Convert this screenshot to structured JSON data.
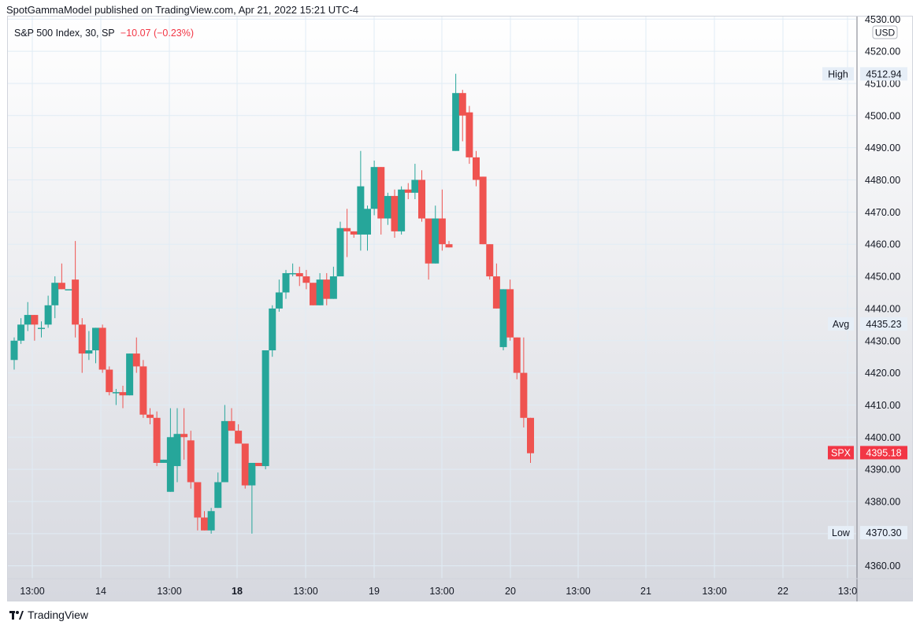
{
  "header": {
    "published": "SpotGammaModel published on TradingView.com, Apr 21, 2022 15:21 UTC-4"
  },
  "legend": {
    "symbol": "S&P 500 Index, 30, SP",
    "change": "−10.07 (−0.23%)"
  },
  "currency": "USD",
  "footer": {
    "brand": "TradingView"
  },
  "colors": {
    "up": "#26a69a",
    "down": "#ef5350",
    "grid": "#e0ecf5"
  },
  "chart_data": {
    "type": "candlestick",
    "title": "S&P 500 Index, 30, SP",
    "ylim": [
      4355,
      4530
    ],
    "y_ticks": [
      4360,
      4370,
      4380,
      4390,
      4400,
      4410,
      4420,
      4430,
      4440,
      4450,
      4460,
      4470,
      4480,
      4490,
      4500,
      4510,
      4520,
      4530
    ],
    "x_ticks": [
      "13:00",
      "14",
      "13:00",
      "18",
      "13:00",
      "19",
      "13:00",
      "20",
      "13:00",
      "21",
      "13:00",
      "22",
      "13:0"
    ],
    "bold_x_ticks": [
      "18"
    ],
    "markers": [
      {
        "label": "High",
        "value": "4512.94",
        "y": 4512.94
      },
      {
        "label": "Avg",
        "value": "4435.23",
        "y": 4435.23
      },
      {
        "label": "SPX",
        "value": "4395.18",
        "y": 4395.18
      },
      {
        "label": "Low",
        "value": "4370.30",
        "y": 4370.3
      }
    ],
    "candles": [
      {
        "o": 4424,
        "h": 4431,
        "l": 4421,
        "c": 4430
      },
      {
        "o": 4430,
        "h": 4437,
        "l": 4429,
        "c": 4435
      },
      {
        "o": 4435,
        "h": 4442,
        "l": 4433,
        "c": 4438
      },
      {
        "o": 4438,
        "h": 4438,
        "l": 4430,
        "c": 4435
      },
      {
        "o": 4434,
        "h": 4436,
        "l": 4431,
        "c": 4434
      },
      {
        "o": 4435,
        "h": 4444,
        "l": 4434,
        "c": 4441
      },
      {
        "o": 4441,
        "h": 4450,
        "l": 4437,
        "c": 4448
      },
      {
        "o": 4448,
        "h": 4454,
        "l": 4446,
        "c": 4446
      },
      {
        "o": 4446,
        "h": 4446,
        "l": 4446,
        "c": 4446
      },
      {
        "o": 4449,
        "h": 4461,
        "l": 4431,
        "c": 4435
      },
      {
        "o": 4435,
        "h": 4437,
        "l": 4420,
        "c": 4426
      },
      {
        "o": 4426,
        "h": 4433,
        "l": 4424,
        "c": 4427
      },
      {
        "o": 4427,
        "h": 4434,
        "l": 4423,
        "c": 4434
      },
      {
        "o": 4434,
        "h": 4435,
        "l": 4420,
        "c": 4421
      },
      {
        "o": 4421,
        "h": 4422,
        "l": 4413,
        "c": 4414
      },
      {
        "o": 4414,
        "h": 4415,
        "l": 4410,
        "c": 4414
      },
      {
        "o": 4414,
        "h": 4416,
        "l": 4409,
        "c": 4413
      },
      {
        "o": 4413,
        "h": 4426,
        "l": 4413,
        "c": 4426
      },
      {
        "o": 4426,
        "h": 4431,
        "l": 4420,
        "c": 4422
      },
      {
        "o": 4422,
        "h": 4424,
        "l": 4406,
        "c": 4407
      },
      {
        "o": 4407,
        "h": 4409,
        "l": 4404,
        "c": 4406
      },
      {
        "o": 4406,
        "h": 4408,
        "l": 4391,
        "c": 4392
      },
      {
        "o": 4392,
        "h": 4393,
        "l": 4392,
        "c": 4393
      },
      {
        "o": 4383,
        "h": 4409,
        "l": 4383,
        "c": 4400
      },
      {
        "o": 4391,
        "h": 4409,
        "l": 4386,
        "c": 4401
      },
      {
        "o": 4401,
        "h": 4409,
        "l": 4393,
        "c": 4400
      },
      {
        "o": 4399,
        "h": 4402,
        "l": 4384,
        "c": 4386
      },
      {
        "o": 4386,
        "h": 4386,
        "l": 4371,
        "c": 4375
      },
      {
        "o": 4375,
        "h": 4377,
        "l": 4371,
        "c": 4371
      },
      {
        "o": 4371,
        "h": 4378,
        "l": 4370,
        "c": 4377
      },
      {
        "o": 4378,
        "h": 4389,
        "l": 4378,
        "c": 4386
      },
      {
        "o": 4386,
        "h": 4410,
        "l": 4386,
        "c": 4405
      },
      {
        "o": 4405,
        "h": 4409,
        "l": 4403,
        "c": 4402
      },
      {
        "o": 4402,
        "h": 4404,
        "l": 4398,
        "c": 4398
      },
      {
        "o": 4398,
        "h": 4398,
        "l": 4384,
        "c": 4385
      },
      {
        "o": 4385,
        "h": 4392,
        "l": 4370,
        "c": 4392
      },
      {
        "o": 4392,
        "h": 4392,
        "l": 4392,
        "c": 4391
      },
      {
        "o": 4391,
        "h": 4427,
        "l": 4390,
        "c": 4427
      },
      {
        "o": 4427,
        "h": 4441,
        "l": 4425,
        "c": 4440
      },
      {
        "o": 4440,
        "h": 4449,
        "l": 4439,
        "c": 4445
      },
      {
        "o": 4445,
        "h": 4452,
        "l": 4443,
        "c": 4451
      },
      {
        "o": 4451,
        "h": 4454,
        "l": 4450,
        "c": 4451
      },
      {
        "o": 4451,
        "h": 4453,
        "l": 4447,
        "c": 4450
      },
      {
        "o": 4450,
        "h": 4452,
        "l": 4446,
        "c": 4448
      },
      {
        "o": 4448,
        "h": 4448,
        "l": 4441,
        "c": 4441
      },
      {
        "o": 4441,
        "h": 4451,
        "l": 4441,
        "c": 4449
      },
      {
        "o": 4449,
        "h": 4451,
        "l": 4441,
        "c": 4443
      },
      {
        "o": 4443,
        "h": 4453,
        "l": 4443,
        "c": 4450
      },
      {
        "o": 4450,
        "h": 4467,
        "l": 4450,
        "c": 4465
      },
      {
        "o": 4465,
        "h": 4471,
        "l": 4456,
        "c": 4464
      },
      {
        "o": 4464,
        "h": 4464,
        "l": 4462,
        "c": 4463
      },
      {
        "o": 4463,
        "h": 4489,
        "l": 4458,
        "c": 4478
      },
      {
        "o": 4463,
        "h": 4472,
        "l": 4458,
        "c": 4471
      },
      {
        "o": 4471,
        "h": 4486,
        "l": 4469,
        "c": 4484
      },
      {
        "o": 4484,
        "h": 4484,
        "l": 4463,
        "c": 4468
      },
      {
        "o": 4468,
        "h": 4476,
        "l": 4466,
        "c": 4475
      },
      {
        "o": 4475,
        "h": 4477,
        "l": 4462,
        "c": 4464
      },
      {
        "o": 4464,
        "h": 4478,
        "l": 4463,
        "c": 4477
      },
      {
        "o": 4477,
        "h": 4479,
        "l": 4474,
        "c": 4476
      },
      {
        "o": 4476,
        "h": 4485,
        "l": 4474,
        "c": 4480
      },
      {
        "o": 4480,
        "h": 4483,
        "l": 4467,
        "c": 4468
      },
      {
        "o": 4468,
        "h": 4468,
        "l": 4449,
        "c": 4454
      },
      {
        "o": 4454,
        "h": 4472,
        "l": 4454,
        "c": 4468
      },
      {
        "o": 4468,
        "h": 4477,
        "l": 4458,
        "c": 4460
      },
      {
        "o": 4460,
        "h": 4461,
        "l": 4459,
        "c": 4459
      },
      {
        "o": 4489,
        "h": 4513,
        "l": 4489,
        "c": 4507
      },
      {
        "o": 4507,
        "h": 4508,
        "l": 4492,
        "c": 4500
      },
      {
        "o": 4501,
        "h": 4503,
        "l": 4485,
        "c": 4487
      },
      {
        "o": 4487,
        "h": 4489,
        "l": 4478,
        "c": 4480
      },
      {
        "o": 4481,
        "h": 4481,
        "l": 4460,
        "c": 4460
      },
      {
        "o": 4460,
        "h": 4460,
        "l": 4449,
        "c": 4450
      },
      {
        "o": 4450,
        "h": 4454,
        "l": 4440,
        "c": 4440
      },
      {
        "o": 4428,
        "h": 4446,
        "l": 4427,
        "c": 4446
      },
      {
        "o": 4446,
        "h": 4449,
        "l": 4430,
        "c": 4431
      },
      {
        "o": 4431,
        "h": 4431,
        "l": 4418,
        "c": 4420
      },
      {
        "o": 4420,
        "h": 4431,
        "l": 4403,
        "c": 4406
      },
      {
        "o": 4406,
        "h": 4406,
        "l": 4392,
        "c": 4395
      }
    ]
  }
}
